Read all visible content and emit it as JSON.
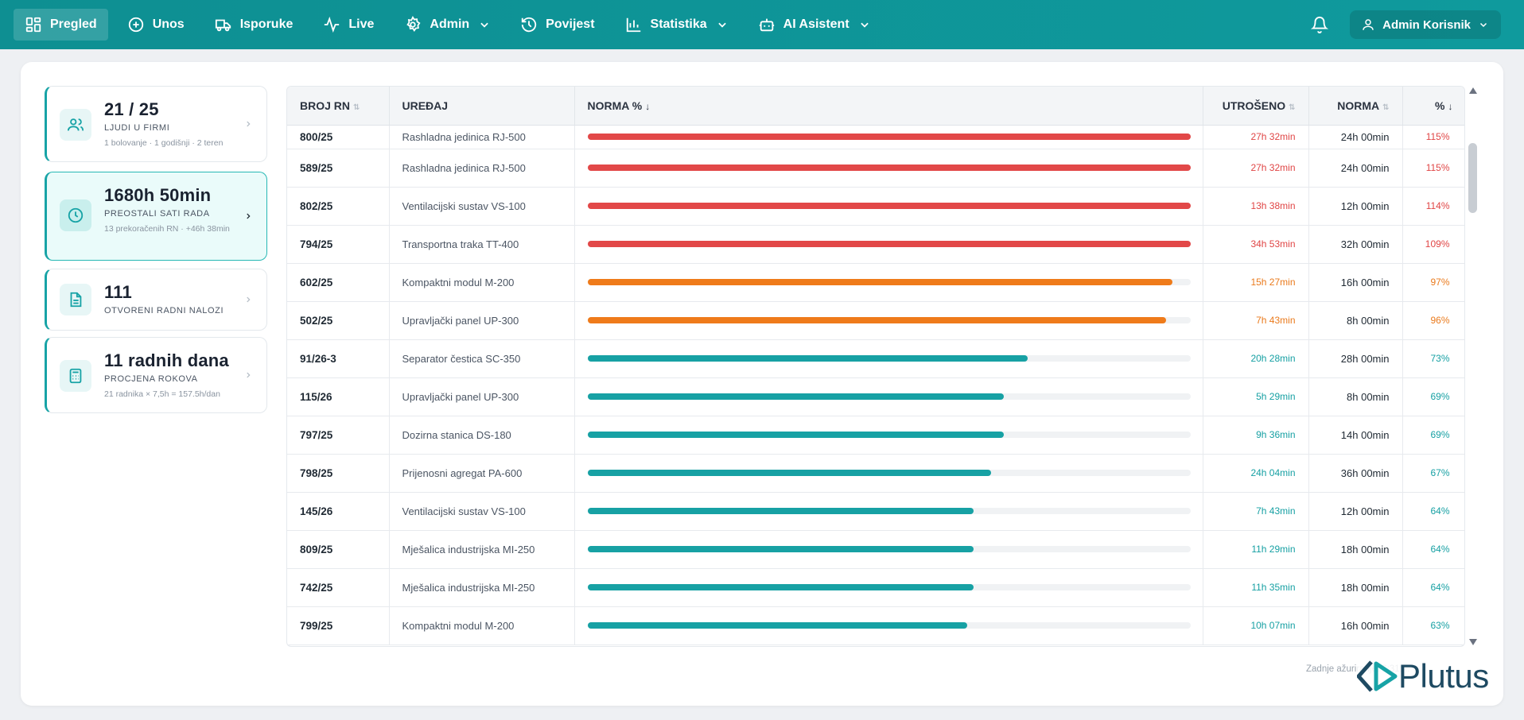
{
  "nav": {
    "items": [
      {
        "label": "Pregled",
        "icon": "grid-icon"
      },
      {
        "label": "Unos",
        "icon": "plus-circle-icon"
      },
      {
        "label": "Isporuke",
        "icon": "truck-icon"
      },
      {
        "label": "Live",
        "icon": "activity-icon"
      },
      {
        "label": "Admin",
        "icon": "gear-icon"
      },
      {
        "label": "Povijest",
        "icon": "history-icon"
      },
      {
        "label": "Statistika",
        "icon": "bar-chart-icon"
      },
      {
        "label": "AI Asistent",
        "icon": "bot-icon"
      }
    ],
    "user": "Admin Korisnik"
  },
  "cards": [
    {
      "value": "21 / 25",
      "label": "LJUDI U FIRMI",
      "sub": "1 bolovanje · 1 godišnji · 2 teren"
    },
    {
      "value": "1680h 50min",
      "label": "PREOSTALI SATI RADA",
      "sub": "13 prekoračenih RN · +46h 38min"
    },
    {
      "value": "111",
      "label": "OTVORENI RADNI NALOZI",
      "sub": ""
    },
    {
      "value": "11 radnih dana",
      "label": "PROCJENA ROKOVA",
      "sub": "21 radnika × 7,5h = 157.5h/dan"
    }
  ],
  "table": {
    "headers": {
      "rn": "BROJ RN",
      "device": "UREĐAJ",
      "norm_pct": "NORMA %",
      "spent": "UTROŠENO",
      "norm": "NORMA",
      "pct": "%"
    },
    "rows": [
      {
        "rn": "800/25",
        "device": "Rashladna jedinica RJ-500",
        "spent": "27h 32min",
        "norm": "24h 00min",
        "pct": "115%",
        "fill": 100,
        "status": "red"
      },
      {
        "rn": "589/25",
        "device": "Rashladna jedinica RJ-500",
        "spent": "27h 32min",
        "norm": "24h 00min",
        "pct": "115%",
        "fill": 100,
        "status": "red"
      },
      {
        "rn": "802/25",
        "device": "Ventilacijski sustav VS-100",
        "spent": "13h 38min",
        "norm": "12h 00min",
        "pct": "114%",
        "fill": 100,
        "status": "red"
      },
      {
        "rn": "794/25",
        "device": "Transportna traka TT-400",
        "spent": "34h 53min",
        "norm": "32h 00min",
        "pct": "109%",
        "fill": 100,
        "status": "red"
      },
      {
        "rn": "602/25",
        "device": "Kompaktni modul M-200",
        "spent": "15h 27min",
        "norm": "16h 00min",
        "pct": "97%",
        "fill": 97,
        "status": "orange"
      },
      {
        "rn": "502/25",
        "device": "Upravljački panel UP-300",
        "spent": "7h 43min",
        "norm": "8h 00min",
        "pct": "96%",
        "fill": 96,
        "status": "orange"
      },
      {
        "rn": "91/26-3",
        "device": "Separator čestica SC-350",
        "spent": "20h 28min",
        "norm": "28h 00min",
        "pct": "73%",
        "fill": 73,
        "status": "teal"
      },
      {
        "rn": "115/26",
        "device": "Upravljački panel UP-300",
        "spent": "5h 29min",
        "norm": "8h 00min",
        "pct": "69%",
        "fill": 69,
        "status": "teal"
      },
      {
        "rn": "797/25",
        "device": "Dozirna stanica DS-180",
        "spent": "9h 36min",
        "norm": "14h 00min",
        "pct": "69%",
        "fill": 69,
        "status": "teal"
      },
      {
        "rn": "798/25",
        "device": "Prijenosni agregat PA-600",
        "spent": "24h 04min",
        "norm": "36h 00min",
        "pct": "67%",
        "fill": 67,
        "status": "teal"
      },
      {
        "rn": "145/26",
        "device": "Ventilacijski sustav VS-100",
        "spent": "7h 43min",
        "norm": "12h 00min",
        "pct": "64%",
        "fill": 64,
        "status": "teal"
      },
      {
        "rn": "809/25",
        "device": "Mješalica industrijska MI-250",
        "spent": "11h 29min",
        "norm": "18h 00min",
        "pct": "64%",
        "fill": 64,
        "status": "teal"
      },
      {
        "rn": "742/25",
        "device": "Mješalica industrijska MI-250",
        "spent": "11h 35min",
        "norm": "18h 00min",
        "pct": "64%",
        "fill": 64,
        "status": "teal"
      },
      {
        "rn": "799/25",
        "device": "Kompaktni modul M-200",
        "spent": "10h 07min",
        "norm": "16h 00min",
        "pct": "63%",
        "fill": 63,
        "status": "teal"
      }
    ]
  },
  "colors": {
    "red": "#e24848",
    "orange": "#ef7b1a",
    "teal": "#17a1a4",
    "brand": "#0f9598"
  },
  "footer": {
    "note": "Zadnje ažuriranje: 6:31:..."
  },
  "logo": {
    "text": "Plutus"
  }
}
